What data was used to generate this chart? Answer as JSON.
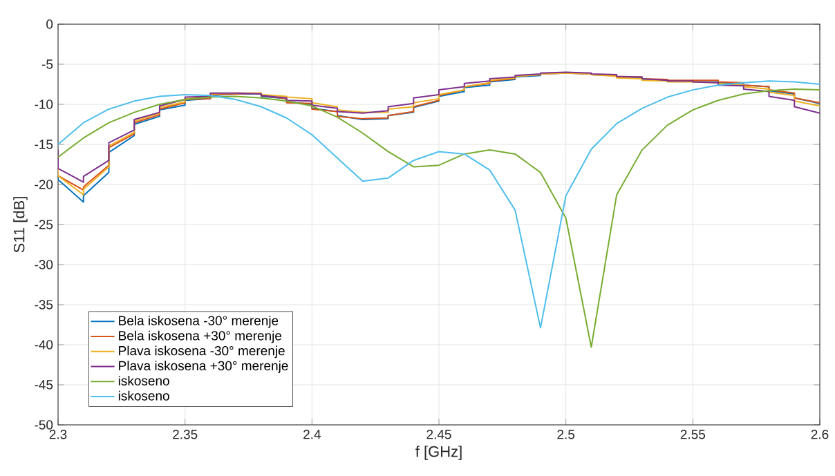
{
  "chart_data": {
    "type": "line",
    "xlabel": "f [GHz]",
    "ylabel": "S11 [dB]",
    "x": [
      2.3,
      2.31,
      2.32,
      2.33,
      2.34,
      2.35,
      2.36,
      2.37,
      2.38,
      2.39,
      2.4,
      2.41,
      2.42,
      2.43,
      2.44,
      2.45,
      2.46,
      2.47,
      2.48,
      2.49,
      2.5,
      2.51,
      2.52,
      2.53,
      2.54,
      2.55,
      2.56,
      2.57,
      2.58,
      2.59,
      2.6
    ],
    "series": [
      {
        "name": "Bela iskosena -30° merenje",
        "color": "#0072bd",
        "x": [
          2.3,
          2.3,
          2.31,
          2.31,
          2.32,
          2.32,
          2.33,
          2.33,
          2.34,
          2.34,
          2.35,
          2.35,
          2.36,
          2.36,
          2.37,
          2.37,
          2.38,
          2.38,
          2.39,
          2.39,
          2.4,
          2.4,
          2.41,
          2.41,
          2.42,
          2.42,
          2.43,
          2.43,
          2.44,
          2.44,
          2.45,
          2.45,
          2.46,
          2.46,
          2.47,
          2.47,
          2.48,
          2.48,
          2.49,
          2.49,
          2.5,
          2.5,
          2.51,
          2.51,
          2.52,
          2.52,
          2.53,
          2.53,
          2.54,
          2.54,
          2.55,
          2.55,
          2.56,
          2.56,
          2.57,
          2.57,
          2.58,
          2.58,
          2.59,
          2.59,
          2.6
        ],
        "values": [
          -19.0,
          -19.4,
          -22.2,
          -21.4,
          -18.5,
          -16.0,
          -13.9,
          -12.5,
          -11.5,
          -10.7,
          -10.1,
          -9.5,
          -9.3,
          -8.9,
          -8.7,
          -8.7,
          -8.7,
          -9.0,
          -9.3,
          -9.7,
          -10.0,
          -10.5,
          -10.9,
          -11.4,
          -11.9,
          -11.9,
          -11.8,
          -11.4,
          -11.0,
          -10.4,
          -9.6,
          -9.0,
          -8.4,
          -7.9,
          -7.6,
          -7.2,
          -6.9,
          -6.6,
          -6.4,
          -6.2,
          -6.1,
          -6.1,
          -6.2,
          -6.3,
          -6.4,
          -6.6,
          -6.7,
          -6.9,
          -7.0,
          -7.1,
          -7.1,
          -7.2,
          -7.2,
          -7.3,
          -7.4,
          -7.6,
          -7.8,
          -8.3,
          -8.7,
          -9.2,
          -9.9
        ]
      },
      {
        "name": "Bela iskosena +30° merenje",
        "color": "#d95319",
        "x": [
          2.3,
          2.3,
          2.31,
          2.31,
          2.32,
          2.32,
          2.33,
          2.33,
          2.34,
          2.34,
          2.35,
          2.35,
          2.36,
          2.36,
          2.37,
          2.37,
          2.38,
          2.38,
          2.39,
          2.39,
          2.4,
          2.4,
          2.41,
          2.41,
          2.42,
          2.42,
          2.43,
          2.43,
          2.44,
          2.44,
          2.45,
          2.45,
          2.46,
          2.46,
          2.47,
          2.47,
          2.48,
          2.48,
          2.49,
          2.49,
          2.5,
          2.5,
          2.51,
          2.51,
          2.52,
          2.52,
          2.53,
          2.53,
          2.54,
          2.54,
          2.55,
          2.55,
          2.56,
          2.56,
          2.57,
          2.57,
          2.58,
          2.58,
          2.59,
          2.59,
          2.6
        ],
        "values": [
          -18.6,
          -18.9,
          -20.7,
          -20.3,
          -17.6,
          -15.4,
          -13.7,
          -12.3,
          -11.3,
          -10.6,
          -9.8,
          -9.4,
          -9.3,
          -8.8,
          -8.7,
          -8.7,
          -8.6,
          -8.9,
          -9.3,
          -9.8,
          -9.9,
          -10.6,
          -10.9,
          -11.5,
          -11.8,
          -11.8,
          -11.7,
          -11.4,
          -10.9,
          -10.3,
          -9.5,
          -8.9,
          -8.2,
          -7.8,
          -7.4,
          -7.1,
          -6.8,
          -6.5,
          -6.3,
          -6.2,
          -6.1,
          -6.1,
          -6.2,
          -6.3,
          -6.4,
          -6.6,
          -6.6,
          -6.8,
          -6.9,
          -7.0,
          -7.0,
          -7.0,
          -7.0,
          -7.2,
          -7.3,
          -7.6,
          -7.8,
          -8.2,
          -8.6,
          -9.2,
          -9.8
        ]
      },
      {
        "name": "Plava iskosena -30° merenje",
        "color": "#edb120",
        "x": [
          2.3,
          2.3,
          2.31,
          2.31,
          2.32,
          2.32,
          2.33,
          2.33,
          2.34,
          2.34,
          2.35,
          2.35,
          2.36,
          2.36,
          2.37,
          2.37,
          2.38,
          2.38,
          2.39,
          2.39,
          2.4,
          2.4,
          2.41,
          2.41,
          2.42,
          2.42,
          2.43,
          2.43,
          2.44,
          2.44,
          2.45,
          2.45,
          2.46,
          2.46,
          2.47,
          2.47,
          2.48,
          2.48,
          2.49,
          2.49,
          2.5,
          2.5,
          2.51,
          2.51,
          2.52,
          2.52,
          2.53,
          2.53,
          2.54,
          2.54,
          2.55,
          2.55,
          2.56,
          2.56,
          2.57,
          2.57,
          2.58,
          2.58,
          2.59,
          2.59,
          2.6
        ],
        "values": [
          -18.1,
          -18.9,
          -21.3,
          -20.6,
          -17.8,
          -15.2,
          -13.5,
          -12.1,
          -11.1,
          -10.4,
          -9.7,
          -9.3,
          -9.1,
          -8.7,
          -8.6,
          -8.6,
          -8.6,
          -8.8,
          -9.0,
          -9.1,
          -9.3,
          -9.8,
          -10.3,
          -10.7,
          -11.0,
          -11.0,
          -11.0,
          -10.6,
          -10.3,
          -9.8,
          -9.3,
          -8.8,
          -8.2,
          -7.8,
          -7.3,
          -7.0,
          -6.7,
          -6.5,
          -6.3,
          -6.2,
          -6.1,
          -6.1,
          -6.2,
          -6.3,
          -6.5,
          -6.7,
          -6.8,
          -7.0,
          -7.1,
          -7.2,
          -7.2,
          -7.2,
          -7.3,
          -7.4,
          -7.6,
          -7.8,
          -8.1,
          -8.5,
          -8.9,
          -9.6,
          -10.2
        ]
      },
      {
        "name": "Plava iskosena +30° merenje",
        "color": "#7e2f8e",
        "x": [
          2.3,
          2.3,
          2.31,
          2.31,
          2.32,
          2.32,
          2.33,
          2.33,
          2.34,
          2.34,
          2.35,
          2.35,
          2.36,
          2.36,
          2.37,
          2.37,
          2.38,
          2.38,
          2.39,
          2.39,
          2.4,
          2.4,
          2.41,
          2.41,
          2.42,
          2.42,
          2.43,
          2.43,
          2.44,
          2.44,
          2.45,
          2.45,
          2.46,
          2.46,
          2.47,
          2.47,
          2.48,
          2.48,
          2.49,
          2.49,
          2.5,
          2.5,
          2.51,
          2.51,
          2.52,
          2.52,
          2.53,
          2.53,
          2.54,
          2.54,
          2.55,
          2.55,
          2.56,
          2.56,
          2.57,
          2.57,
          2.58,
          2.58,
          2.59,
          2.59,
          2.6
        ],
        "values": [
          -15.7,
          -18.0,
          -19.7,
          -19.0,
          -17.0,
          -14.8,
          -13.2,
          -11.9,
          -11.0,
          -10.2,
          -9.4,
          -9.1,
          -9.0,
          -8.6,
          -8.6,
          -8.6,
          -8.7,
          -8.9,
          -9.2,
          -9.5,
          -9.6,
          -10.1,
          -10.5,
          -10.9,
          -11.1,
          -11.1,
          -10.8,
          -10.3,
          -9.9,
          -9.2,
          -8.8,
          -8.2,
          -7.8,
          -7.4,
          -7.1,
          -6.8,
          -6.6,
          -6.4,
          -6.2,
          -6.1,
          -6.0,
          -6.0,
          -6.1,
          -6.2,
          -6.3,
          -6.5,
          -6.6,
          -6.8,
          -7.0,
          -7.1,
          -7.1,
          -7.2,
          -7.3,
          -7.6,
          -7.7,
          -8.1,
          -8.4,
          -9.0,
          -9.5,
          -10.3,
          -11.1
        ]
      },
      {
        "name": "iskoseno",
        "color": "#77ac30",
        "values": [
          -16.6,
          -14.2,
          -12.3,
          -11.0,
          -10.0,
          -9.4,
          -9.1,
          -9.0,
          -9.2,
          -9.6,
          -10.2,
          -11.6,
          -13.6,
          -15.9,
          -17.8,
          -17.6,
          -16.2,
          -15.7,
          -16.2,
          -18.5,
          -24.2,
          -40.3,
          -21.3,
          -15.7,
          -12.6,
          -10.7,
          -9.5,
          -8.7,
          -8.3,
          -8.1,
          -8.2
        ]
      },
      {
        "name": "iskoseno",
        "color": "#4dbeee",
        "values": [
          -15.0,
          -12.3,
          -10.6,
          -9.6,
          -9.0,
          -8.8,
          -8.9,
          -9.4,
          -10.3,
          -11.7,
          -13.8,
          -16.7,
          -19.6,
          -19.2,
          -17.0,
          -15.9,
          -16.2,
          -18.2,
          -23.2,
          -37.9,
          -21.4,
          -15.6,
          -12.4,
          -10.5,
          -9.1,
          -8.2,
          -7.6,
          -7.3,
          -7.1,
          -7.2,
          -7.5
        ]
      }
    ],
    "xlim": [
      2.3,
      2.6
    ],
    "ylim": [
      -50,
      0
    ],
    "xticks": [
      2.3,
      2.35,
      2.4,
      2.45,
      2.5,
      2.55,
      2.6
    ],
    "yticks": [
      -50,
      -45,
      -40,
      -35,
      -30,
      -25,
      -20,
      -15,
      -10,
      -5,
      0
    ],
    "grid": true,
    "legend": "bottom left",
    "line_style": "solid"
  }
}
